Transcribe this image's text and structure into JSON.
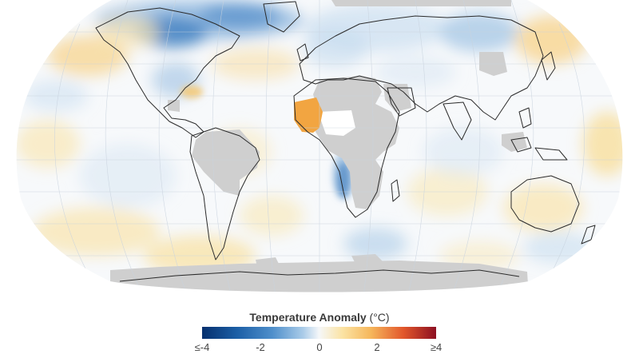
{
  "legend": {
    "title": "Temperature Anomaly",
    "unit": "(°C)",
    "ticks": [
      "≤-4",
      "-2",
      "0",
      "2",
      "≥4"
    ],
    "colors": {
      "cold_extreme": "#06306e",
      "cold": "#4f8fcb",
      "neutral": "#f5f7f9",
      "warm": "#f6b75c",
      "warm_extreme": "#8c0f22",
      "no_data": "#cfcfcf"
    }
  },
  "map": {
    "projection": "Robinson",
    "no_data_color": "#cfcfcf",
    "ocean_color": "#f7f9fb"
  }
}
